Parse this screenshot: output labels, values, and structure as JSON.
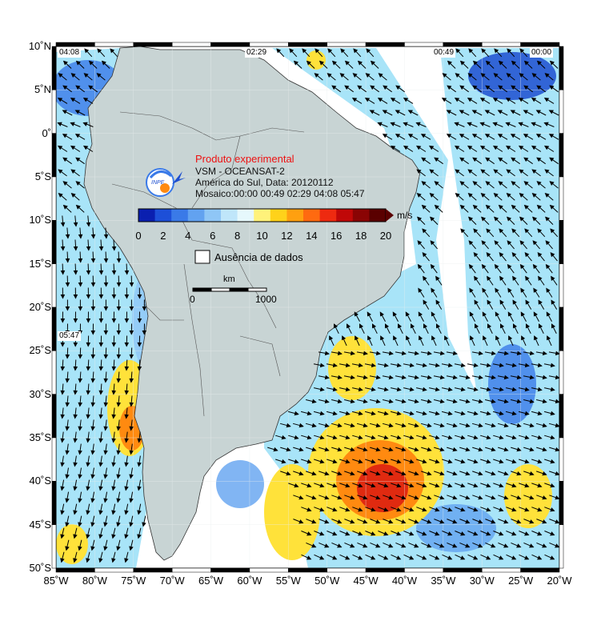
{
  "product": {
    "title": "Produto experimental",
    "line1": "VSM - OCEANSAT-2",
    "line2": "América do Sul, Data: 20120112",
    "line3": "Mosaico:00:00 00:49 02:29 04:08 05:47",
    "logo_text": "INPE"
  },
  "colorbar": {
    "unit": "m/s",
    "ticks": [
      "0",
      "2",
      "4",
      "6",
      "8",
      "10",
      "12",
      "14",
      "16",
      "18",
      "20"
    ],
    "colors": [
      "#0a1fb0",
      "#1d4fd8",
      "#3a7ae8",
      "#62a2f0",
      "#8fc6f6",
      "#bfe6fa",
      "#e6f8fc",
      "#fff27a",
      "#ffd21a",
      "#ffa010",
      "#ff6a10",
      "#ee2a10",
      "#c00808",
      "#8a0404",
      "#5a0000"
    ]
  },
  "legend": {
    "no_data_label": "Ausência de dados"
  },
  "scalebar": {
    "unit": "km",
    "start": "0",
    "end": "1000"
  },
  "lat_labels": [
    "10˚N",
    "5˚N",
    "0˚",
    "5˚S",
    "10˚S",
    "15˚S",
    "20˚S",
    "25˚S",
    "30˚S",
    "35˚S",
    "40˚S",
    "45˚S",
    "50˚S"
  ],
  "lon_labels": [
    "85˚W",
    "80˚W",
    "75˚W",
    "70˚W",
    "65˚W",
    "60˚W",
    "55˚W",
    "50˚W",
    "45˚W",
    "40˚W",
    "35˚W",
    "30˚W",
    "25˚W",
    "20˚W"
  ],
  "pass_times": {
    "t1": "04:08",
    "t2": "02:29",
    "t3": "00:49",
    "t4": "00:00",
    "t5": "05:47"
  },
  "colors": {
    "land": "#c8d4d4",
    "low_wind": "#a8e4f8",
    "mid_wind": "#6ab4ec",
    "high_wind": "#1f4fd0",
    "strong_yellow": "#ffe23a",
    "strong_orange": "#ff8a10",
    "strong_red": "#e02a10"
  }
}
